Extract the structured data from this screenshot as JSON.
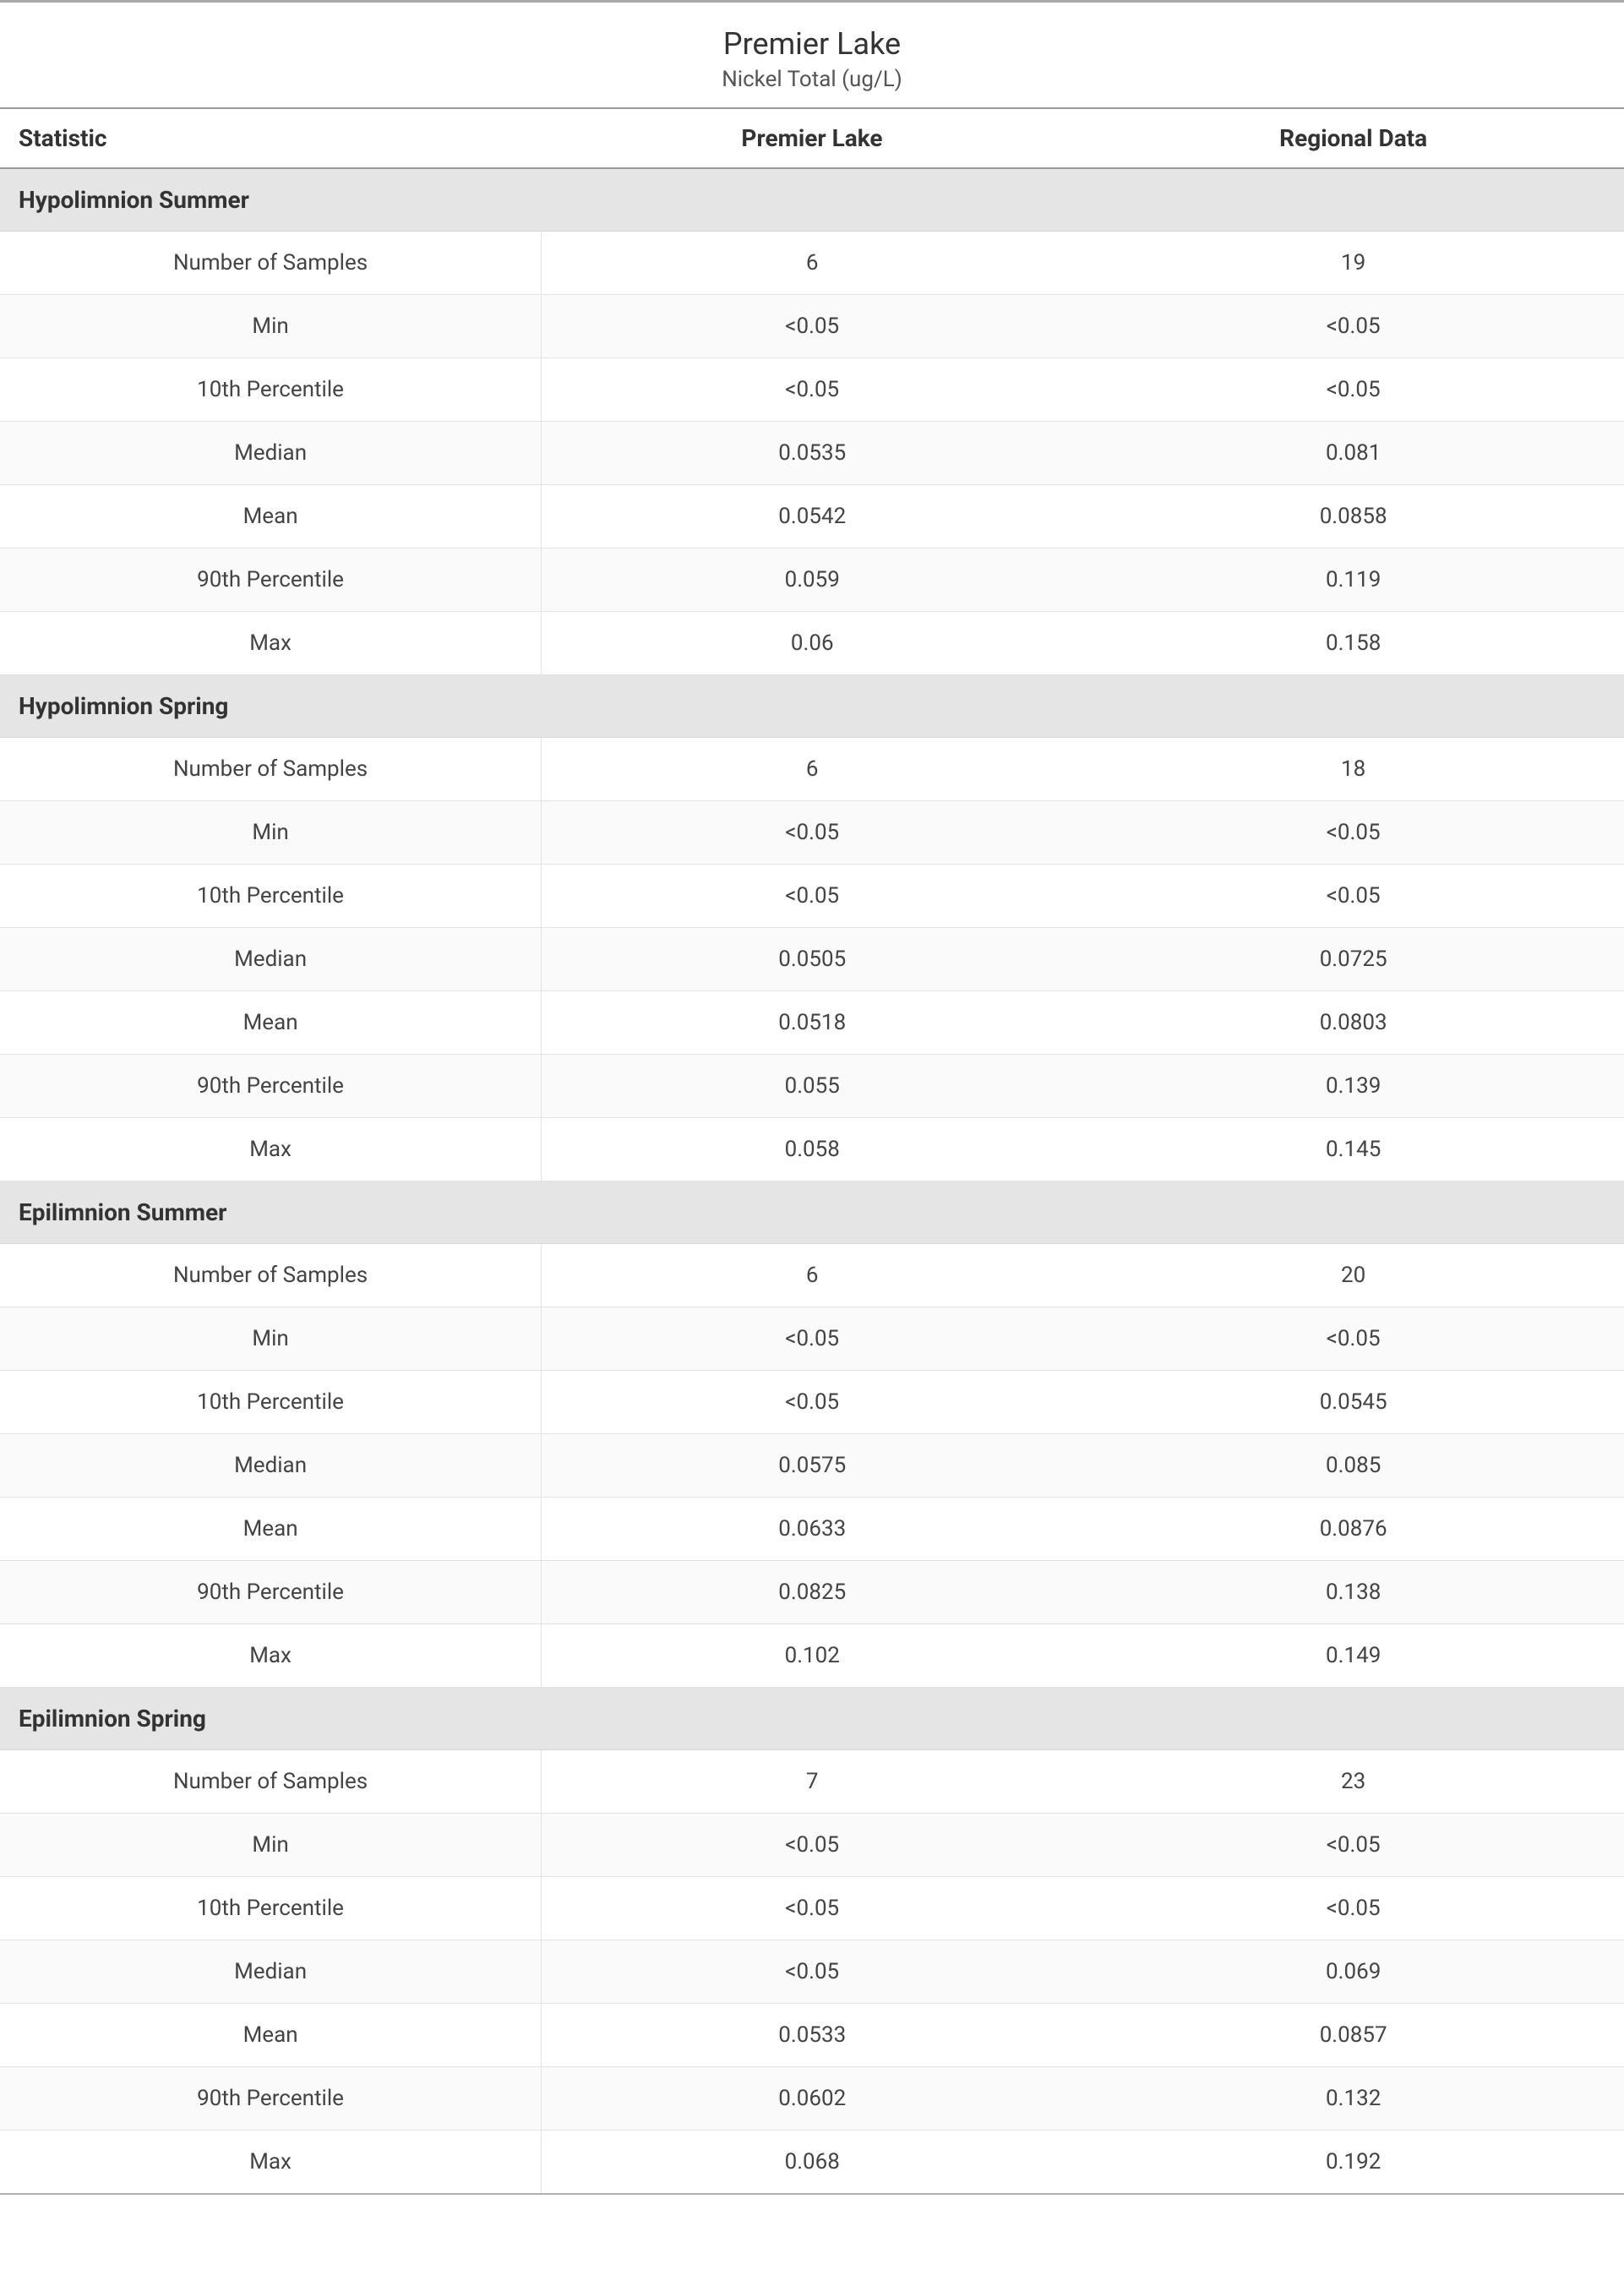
{
  "header": {
    "title": "Premier Lake",
    "subtitle": "Nickel Total (ug/L)"
  },
  "columns": {
    "stat": "Statistic",
    "col1": "Premier Lake",
    "col2": "Regional Data"
  },
  "stat_labels": {
    "n": "Number of Samples",
    "min": "Min",
    "p10": "10th Percentile",
    "median": "Median",
    "mean": "Mean",
    "p90": "90th Percentile",
    "max": "Max"
  },
  "sections": [
    {
      "name": "Hypolimnion Summer",
      "rows": {
        "n": [
          "6",
          "19"
        ],
        "min": [
          "<0.05",
          "<0.05"
        ],
        "p10": [
          "<0.05",
          "<0.05"
        ],
        "median": [
          "0.0535",
          "0.081"
        ],
        "mean": [
          "0.0542",
          "0.0858"
        ],
        "p90": [
          "0.059",
          "0.119"
        ],
        "max": [
          "0.06",
          "0.158"
        ]
      }
    },
    {
      "name": "Hypolimnion Spring",
      "rows": {
        "n": [
          "6",
          "18"
        ],
        "min": [
          "<0.05",
          "<0.05"
        ],
        "p10": [
          "<0.05",
          "<0.05"
        ],
        "median": [
          "0.0505",
          "0.0725"
        ],
        "mean": [
          "0.0518",
          "0.0803"
        ],
        "p90": [
          "0.055",
          "0.139"
        ],
        "max": [
          "0.058",
          "0.145"
        ]
      }
    },
    {
      "name": "Epilimnion Summer",
      "rows": {
        "n": [
          "6",
          "20"
        ],
        "min": [
          "<0.05",
          "<0.05"
        ],
        "p10": [
          "<0.05",
          "0.0545"
        ],
        "median": [
          "0.0575",
          "0.085"
        ],
        "mean": [
          "0.0633",
          "0.0876"
        ],
        "p90": [
          "0.0825",
          "0.138"
        ],
        "max": [
          "0.102",
          "0.149"
        ]
      }
    },
    {
      "name": "Epilimnion Spring",
      "rows": {
        "n": [
          "7",
          "23"
        ],
        "min": [
          "<0.05",
          "<0.05"
        ],
        "p10": [
          "<0.05",
          "<0.05"
        ],
        "median": [
          "<0.05",
          "0.069"
        ],
        "mean": [
          "0.0533",
          "0.0857"
        ],
        "p90": [
          "0.0602",
          "0.132"
        ],
        "max": [
          "0.068",
          "0.192"
        ]
      }
    }
  ],
  "style": {
    "background_color": "#ffffff",
    "row_alt_color": "#fafafa",
    "section_bg_color": "#e5e5e5",
    "border_color": "#e3e3e3",
    "header_border_color": "#999999",
    "top_rule_color": "#a9a9a9",
    "text_color": "#333333",
    "title_fontsize": 36,
    "subtitle_fontsize": 26,
    "header_fontsize": 28,
    "cell_fontsize": 26
  }
}
